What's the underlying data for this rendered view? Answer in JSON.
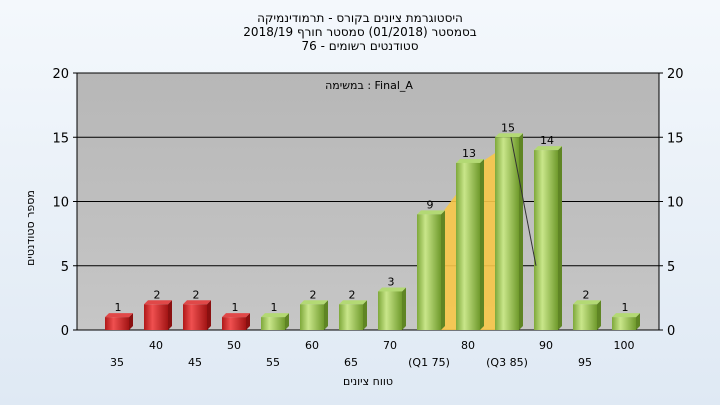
{
  "chart_data": {
    "type": "bar",
    "title_lines": [
      "היסטוגרמת ציונים בקורס - תרמודינמיקה",
      "בסמסטר  (01/2018)  סמסטר חורף 2018/19",
      "סטודנטים רשומים - 76"
    ],
    "annotation": "במשימה : Final_A",
    "xlabel": "טווח ציונים",
    "ylabel": "מספר סטודנטים",
    "ylim": [
      0,
      20
    ],
    "yticks": [
      0,
      5,
      10,
      15,
      20
    ],
    "grid": true,
    "categories": [
      "35",
      "40",
      "45",
      "50",
      "55",
      "60",
      "65",
      "70",
      "(Q1 75)",
      "80",
      "(Q3 85)",
      "90",
      "95",
      "100"
    ],
    "values": [
      1,
      2,
      2,
      1,
      1,
      2,
      2,
      3,
      9,
      13,
      15,
      14,
      2,
      1
    ],
    "value_labels": [
      "1",
      "2",
      "2",
      "1",
      "1",
      "2",
      "2",
      "3",
      "9",
      "13",
      "15",
      "14",
      "2",
      "1"
    ],
    "colors": {
      "fail_bar": "#d42a2a",
      "pass_bar": "#9cc653",
      "iqr_fill": "#f7c648",
      "plot_bg": "#c0c0c0",
      "grid": "#000000"
    },
    "fail_count": 4,
    "iqr_range": [
      8,
      10
    ],
    "median_line": {
      "from_index": 10,
      "to_index": 11,
      "value_from": 15,
      "value_to": 5
    }
  }
}
